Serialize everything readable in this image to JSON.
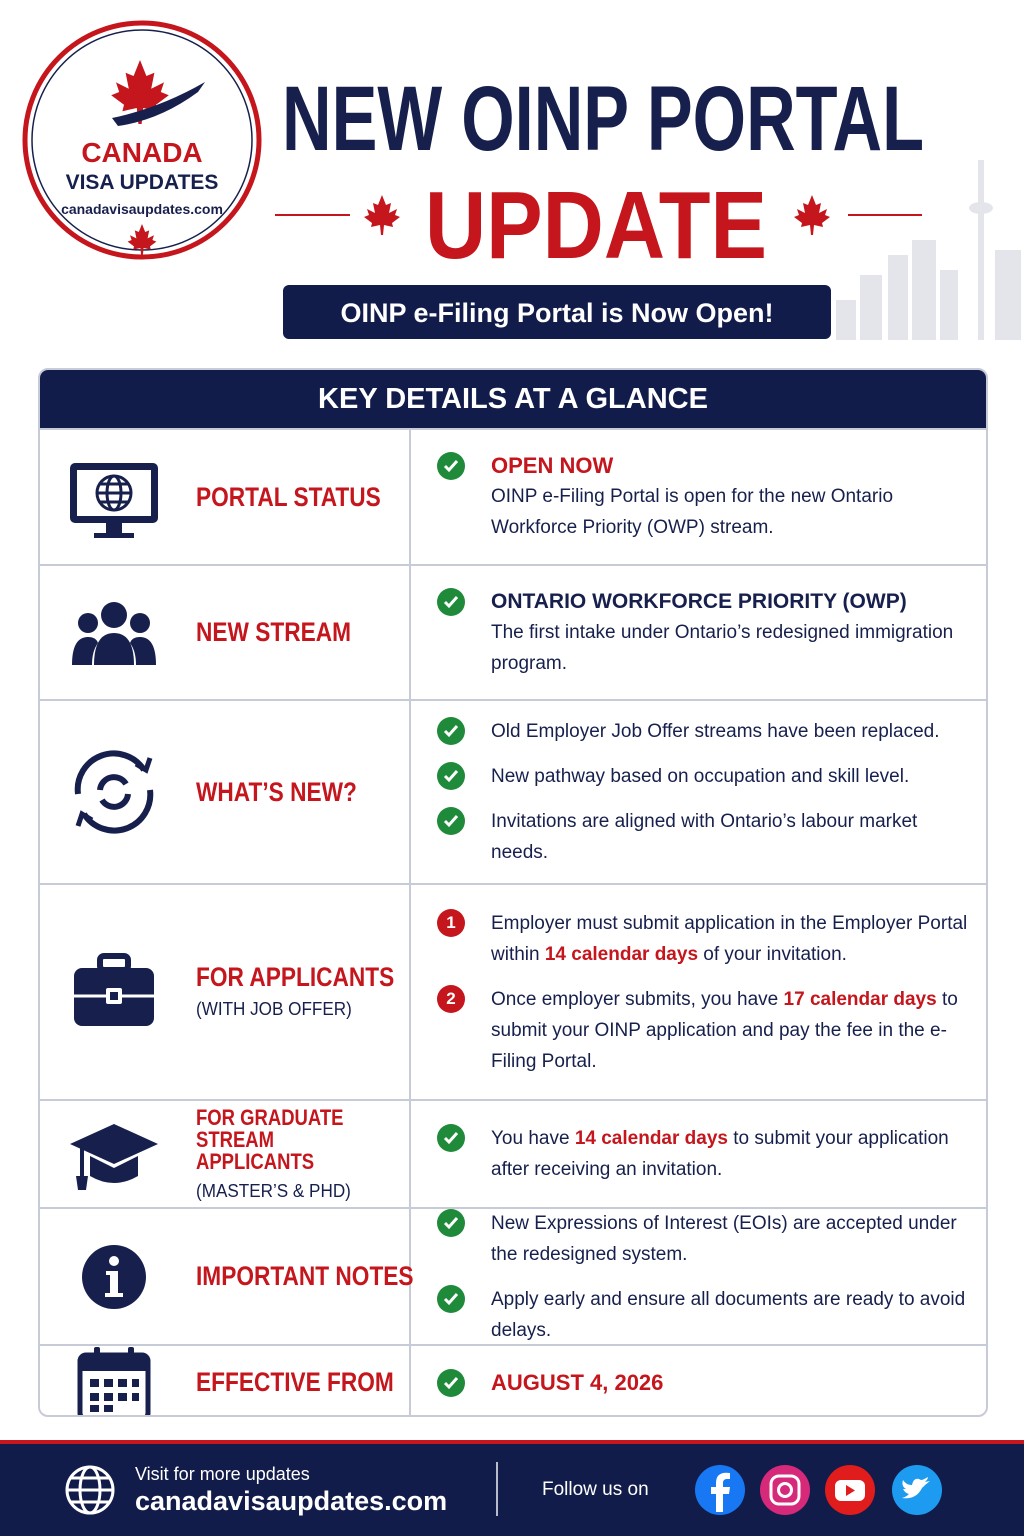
{
  "logo": {
    "line1": "CANADA",
    "line2": "VISA UPDATES",
    "url": "canadavisaupdates.com"
  },
  "header": {
    "title_line1": "NEW OINP PORTAL",
    "title_line2": "UPDATE",
    "banner": "OINP e-Filing Portal is Now Open!"
  },
  "table": {
    "heading": "KEY DETAILS AT A GLANCE",
    "rows": [
      {
        "label": "PORTAL STATUS",
        "items": [
          {
            "heading": "OPEN NOW",
            "parts": [
              "OINP e-Filing Portal is open for the new Ontario Workforce Priority (OWP) stream."
            ]
          }
        ]
      },
      {
        "label": "NEW STREAM",
        "items": [
          {
            "heading": "ONTARIO WORKFORCE PRIORITY (OWP)",
            "parts": [
              "The first intake under Ontario’s redesigned immigration program."
            ]
          }
        ]
      },
      {
        "label": "WHAT’S NEW?",
        "items": [
          {
            "parts": [
              "Old Employer Job Offer streams have been replaced."
            ]
          },
          {
            "parts": [
              "New pathway based on occupation and skill level."
            ]
          },
          {
            "parts": [
              "Invitations are aligned with Ontario’s labour market needs."
            ]
          }
        ]
      },
      {
        "label": "FOR APPLICANTS",
        "sublabel": "(WITH JOB OFFER)",
        "items": [
          {
            "marker": "1",
            "parts": [
              "Employer must submit application in the Employer Portal within ",
              "14 calendar days",
              " of your invitation."
            ]
          },
          {
            "marker": "2",
            "parts": [
              "Once employer submits, you have ",
              "17 calendar days",
              " to submit your OINP application and pay the fee in the e-Filing Portal."
            ]
          }
        ]
      },
      {
        "label": "FOR GRADUATE STREAM APPLICANTS",
        "sublabel": "(MASTER’S & PHD)",
        "items": [
          {
            "parts": [
              "You have ",
              "14 calendar days",
              " to submit your application after receiving an invitation."
            ]
          }
        ]
      },
      {
        "label": "IMPORTANT NOTES",
        "items": [
          {
            "parts": [
              "New Expressions of Interest (EOIs) are accepted under the redesigned system."
            ]
          },
          {
            "parts": [
              "Apply early and ensure all documents are ready to avoid delays."
            ]
          }
        ]
      },
      {
        "label": "EFFECTIVE FROM",
        "items": [
          {
            "heading": "AUGUST 4, 2026"
          }
        ]
      }
    ]
  },
  "footer": {
    "visit": "Visit for more updates",
    "url": "canadavisaupdates.com",
    "follow": "Follow us on"
  }
}
